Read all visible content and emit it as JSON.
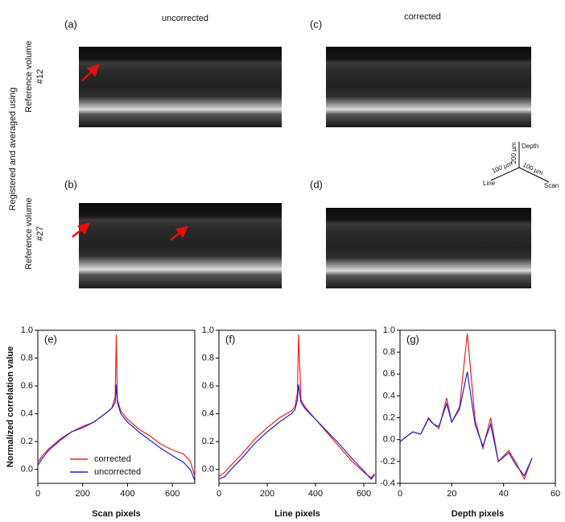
{
  "panels": {
    "a": "(a)",
    "b": "(b)",
    "c": "(c)",
    "d": "(d)",
    "uncorrected": "uncorrected",
    "corrected": "corrected",
    "row_group": "Registered and averaged using",
    "row1": [
      "Reference volume",
      "#12"
    ],
    "row2": [
      "Reference volume",
      "#27"
    ],
    "scale_bar": {
      "depth": "Depth",
      "depth_len": "200 µm",
      "line_len": "100 µm",
      "line": "Line",
      "scan_len": "100 µm",
      "scan": "Scan"
    }
  },
  "chart_data": [
    {
      "type": "line",
      "label": "(e)",
      "xlabel": "Scan pixels",
      "ylabel": "Normalized correlation value",
      "x": [
        0,
        20,
        50,
        100,
        150,
        200,
        250,
        300,
        330,
        345,
        350,
        355,
        370,
        400,
        450,
        500,
        550,
        600,
        650,
        680,
        700
      ],
      "series": [
        {
          "name": "corrected",
          "color": "#e8231f",
          "values": [
            0.05,
            0.1,
            0.15,
            0.22,
            0.27,
            0.31,
            0.34,
            0.4,
            0.44,
            0.52,
            0.97,
            0.5,
            0.42,
            0.36,
            0.29,
            0.24,
            0.18,
            0.14,
            0.11,
            0.06,
            -0.05
          ]
        },
        {
          "name": "uncorrected",
          "color": "#1f1fd0",
          "values": [
            0.03,
            0.08,
            0.14,
            0.21,
            0.27,
            0.3,
            0.34,
            0.4,
            0.44,
            0.48,
            0.61,
            0.48,
            0.4,
            0.34,
            0.27,
            0.21,
            0.15,
            0.1,
            0.05,
            0.0,
            -0.08
          ]
        }
      ],
      "xlim": [
        0,
        700
      ],
      "xticks": [
        0,
        200,
        400,
        600
      ],
      "ylim": [
        -0.1,
        1.0
      ],
      "yticks": [
        {
          "value": 0,
          "label": "0.0"
        },
        0.2,
        0.4,
        0.6,
        0.8,
        {
          "value": 1,
          "label": "1.0"
        }
      ],
      "legend": "lower left"
    },
    {
      "type": "line",
      "label": "(f)",
      "xlabel": "Line pixels",
      "x": [
        0,
        25,
        50,
        100,
        150,
        200,
        250,
        300,
        315,
        325,
        330,
        340,
        360,
        400,
        450,
        500,
        550,
        600,
        630,
        645
      ],
      "series": [
        {
          "color": "#e8231f",
          "values": [
            -0.05,
            -0.02,
            0.03,
            0.12,
            0.22,
            0.3,
            0.37,
            0.42,
            0.45,
            0.55,
            0.97,
            0.5,
            0.44,
            0.36,
            0.26,
            0.16,
            0.06,
            -0.02,
            -0.06,
            -0.03
          ]
        },
        {
          "color": "#1f1fd0",
          "values": [
            -0.07,
            -0.05,
            0.0,
            0.09,
            0.19,
            0.27,
            0.34,
            0.4,
            0.43,
            0.5,
            0.61,
            0.48,
            0.43,
            0.36,
            0.27,
            0.18,
            0.08,
            -0.01,
            -0.07,
            -0.04
          ]
        }
      ],
      "xlim": [
        0,
        650
      ],
      "xticks": [
        0,
        200,
        400,
        600
      ],
      "ylim": [
        -0.1,
        1.0
      ],
      "yticks": [
        {
          "value": 0,
          "label": "0.0"
        },
        0.2,
        0.4,
        0.6,
        0.8,
        {
          "value": 1,
          "label": "1.0"
        }
      ]
    },
    {
      "type": "line",
      "label": "(g)",
      "xlabel": "Depth pixels",
      "x": [
        0,
        2,
        5,
        8,
        11,
        13,
        15,
        18,
        20,
        23,
        26,
        29,
        32,
        35,
        38,
        42,
        45,
        48,
        51
      ],
      "series": [
        {
          "color": "#e8231f",
          "values": [
            -0.02,
            0.02,
            0.07,
            0.05,
            0.2,
            0.14,
            0.1,
            0.38,
            0.16,
            0.3,
            0.97,
            0.18,
            -0.08,
            0.2,
            -0.2,
            -0.1,
            -0.22,
            -0.36,
            -0.17
          ]
        },
        {
          "color": "#1f1fd0",
          "values": [
            -0.02,
            0.02,
            0.07,
            0.05,
            0.19,
            0.14,
            0.12,
            0.33,
            0.16,
            0.28,
            0.62,
            0.14,
            -0.06,
            0.14,
            -0.2,
            -0.12,
            -0.24,
            -0.33,
            -0.17
          ]
        }
      ],
      "xlim": [
        0,
        60
      ],
      "xticks": [
        0,
        20,
        40,
        60
      ],
      "ylim": [
        -0.4,
        1.0
      ],
      "yticks": [
        -0.4,
        -0.2,
        {
          "value": 0,
          "label": "0.0"
        },
        0.2,
        0.4,
        0.6,
        0.8,
        {
          "value": 1,
          "label": "1.0"
        }
      ]
    }
  ]
}
